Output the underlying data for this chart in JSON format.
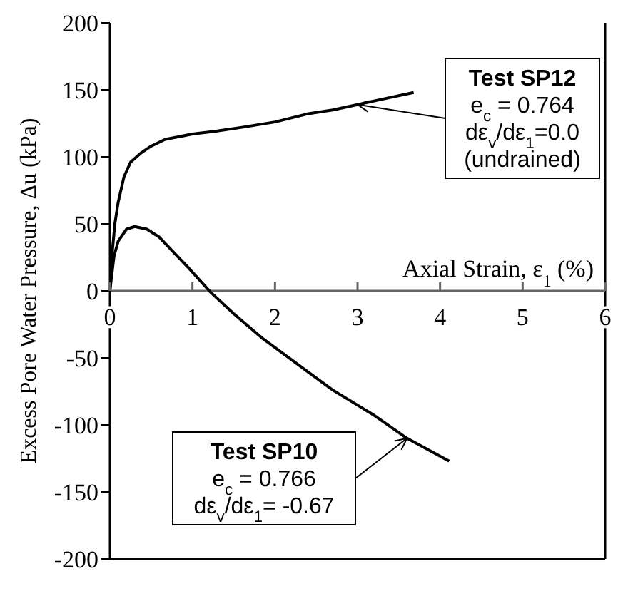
{
  "chart_data": {
    "type": "line",
    "xlabel": "Axial Strain, ε$_{1}$ (%)",
    "ylabel": "Excess Pore Water Pressure, Δu (kPa)",
    "xlim": [
      0,
      6
    ],
    "xticks": [
      0,
      1,
      2,
      3,
      4,
      5,
      6
    ],
    "ylim": [
      -200,
      200
    ],
    "yticks": [
      -200,
      -150,
      -100,
      -50,
      0,
      50,
      100,
      150,
      200
    ],
    "series": [
      {
        "color": "#000000",
        "x": [
          0,
          0.03,
          0.06,
          0.1,
          0.17,
          0.25,
          0.38,
          0.5,
          0.67,
          1.0,
          1.27,
          1.6,
          2.0,
          2.39,
          2.7,
          3.0,
          3.3,
          3.68
        ],
        "values": [
          0,
          30,
          50,
          66,
          85,
          96,
          103,
          108,
          113,
          117,
          119,
          122,
          126,
          132,
          135,
          139,
          143,
          148
        ]
      },
      {
        "color": "#000000",
        "x": [
          0,
          0.05,
          0.1,
          0.2,
          0.3,
          0.45,
          0.6,
          0.94,
          1.22,
          1.5,
          1.84,
          2.06,
          2.39,
          2.7,
          3.18,
          3.6,
          4.11
        ],
        "values": [
          0,
          26,
          37,
          46,
          48,
          46,
          40,
          18,
          -1,
          -17,
          -35,
          -45,
          -60,
          -74,
          -92,
          -110,
          -127
        ]
      }
    ],
    "annotations": [
      "Test SP12",
      {
        "text": "e$_{c}$ = 0.764",
        "x": 3.0,
        "y": 139
      },
      "dε$_{v}$/dε$_{1}$=0.0",
      "(undrained)",
      "Test SP10",
      "e$_{c}$ = 0.766",
      {
        "text": "dε$_{v}$/dε$_{1}$= -0.67",
        "x": 3.6,
        "y": -110
      }
    ]
  }
}
